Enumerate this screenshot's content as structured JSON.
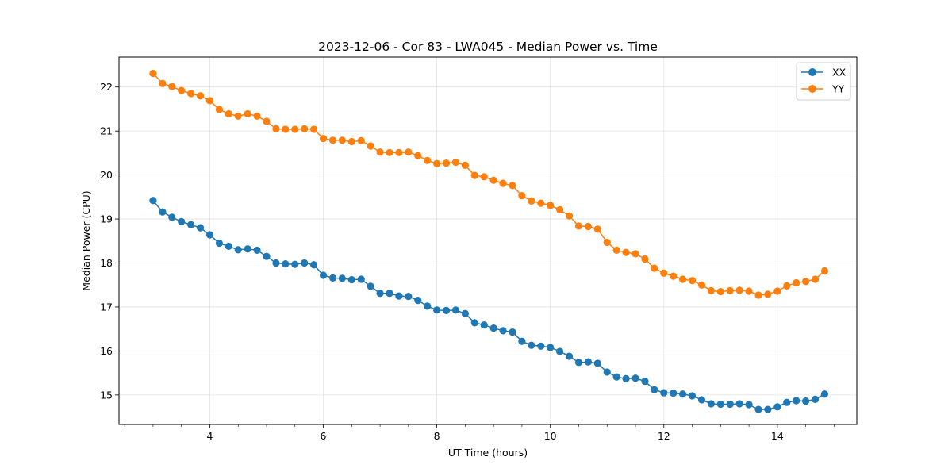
{
  "chart_data": {
    "type": "line",
    "title": "2023-12-06 - Cor 83 - LWA045 - Median Power vs. Time",
    "xlabel": "UT Time (hours)",
    "ylabel": "Median Power (CPU)",
    "xlim": [
      2.4,
      15.4
    ],
    "ylim": [
      14.33,
      22.68
    ],
    "xticks": [
      4,
      6,
      8,
      10,
      12,
      14
    ],
    "yticks": [
      15,
      16,
      17,
      18,
      19,
      20,
      21,
      22
    ],
    "grid": true,
    "legend_position": "top-right",
    "x": [
      3.0,
      3.167,
      3.333,
      3.5,
      3.667,
      3.833,
      4.0,
      4.167,
      4.333,
      4.5,
      4.667,
      4.833,
      5.0,
      5.167,
      5.333,
      5.5,
      5.667,
      5.833,
      6.0,
      6.167,
      6.333,
      6.5,
      6.667,
      6.833,
      7.0,
      7.167,
      7.333,
      7.5,
      7.667,
      7.833,
      8.0,
      8.167,
      8.333,
      8.5,
      8.667,
      8.833,
      9.0,
      9.167,
      9.333,
      9.5,
      9.667,
      9.833,
      10.0,
      10.167,
      10.333,
      10.5,
      10.667,
      10.833,
      11.0,
      11.167,
      11.333,
      11.5,
      11.667,
      11.833,
      12.0,
      12.167,
      12.333,
      12.5,
      12.667,
      12.833,
      13.0,
      13.167,
      13.333,
      13.5,
      13.667,
      13.833,
      14.0,
      14.167,
      14.333,
      14.5,
      14.667,
      14.833
    ],
    "series": [
      {
        "name": "XX",
        "color": "#1f77b4",
        "values": [
          19.42,
          19.16,
          19.04,
          18.94,
          18.87,
          18.8,
          18.64,
          18.45,
          18.38,
          18.3,
          18.32,
          18.29,
          18.15,
          18.0,
          17.98,
          17.97,
          18.0,
          17.96,
          17.72,
          17.66,
          17.65,
          17.62,
          17.63,
          17.47,
          17.31,
          17.31,
          17.25,
          17.24,
          17.15,
          17.02,
          16.93,
          16.92,
          16.93,
          16.85,
          16.64,
          16.59,
          16.52,
          16.46,
          16.43,
          16.22,
          16.13,
          16.11,
          16.08,
          15.99,
          15.88,
          15.74,
          15.75,
          15.72,
          15.52,
          15.41,
          15.37,
          15.38,
          15.31,
          15.12,
          15.05,
          15.04,
          15.02,
          14.98,
          14.89,
          14.8,
          14.79,
          14.79,
          14.8,
          14.78,
          14.67,
          14.67,
          14.73,
          14.83,
          14.87,
          14.86,
          14.9,
          15.02
        ]
      },
      {
        "name": "YY",
        "color": "#ff7f0e",
        "values": [
          22.31,
          22.08,
          22.01,
          21.92,
          21.85,
          21.8,
          21.69,
          21.49,
          21.39,
          21.34,
          21.39,
          21.34,
          21.22,
          21.05,
          21.04,
          21.04,
          21.05,
          21.04,
          20.83,
          20.79,
          20.79,
          20.76,
          20.78,
          20.66,
          20.52,
          20.51,
          20.51,
          20.52,
          20.44,
          20.33,
          20.26,
          20.27,
          20.29,
          20.22,
          19.99,
          19.96,
          19.88,
          19.81,
          19.76,
          19.53,
          19.41,
          19.36,
          19.31,
          19.21,
          19.07,
          18.84,
          18.83,
          18.77,
          18.47,
          18.29,
          18.24,
          18.21,
          18.09,
          17.88,
          17.77,
          17.7,
          17.63,
          17.6,
          17.5,
          17.37,
          17.35,
          17.37,
          17.38,
          17.36,
          17.27,
          17.29,
          17.36,
          17.48,
          17.55,
          17.58,
          17.63,
          17.82
        ]
      }
    ]
  }
}
